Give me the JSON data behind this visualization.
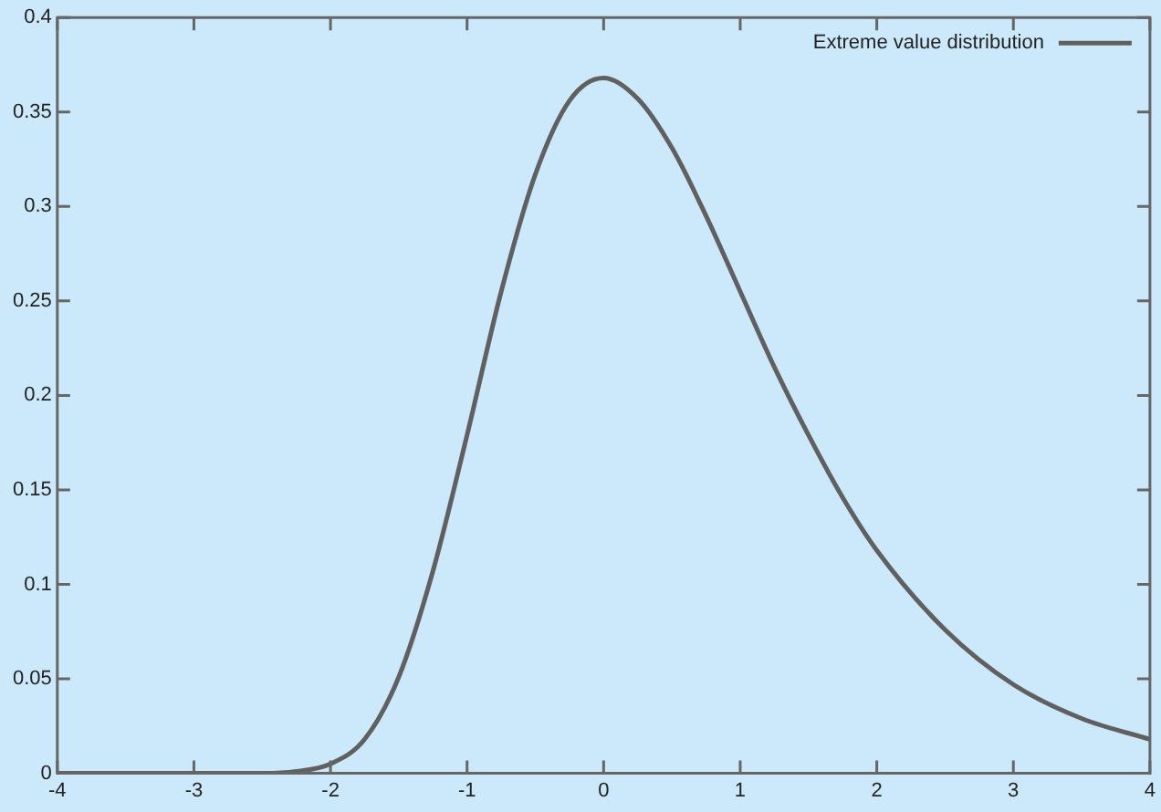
{
  "chart_data": {
    "type": "line",
    "legend": "top right",
    "grid": false,
    "marker": "none",
    "line_style": "solid",
    "x": [
      -4,
      -3,
      -2.5,
      -2.25,
      -2,
      -1.75,
      -1.5,
      -1.25,
      -1,
      -0.75,
      -0.5,
      -0.25,
      0,
      0.25,
      0.5,
      0.75,
      1,
      1.25,
      1.5,
      1.75,
      2,
      2.5,
      3,
      3.5,
      4
    ],
    "series": [
      {
        "name": "Extreme value distribution",
        "color": "#606060",
        "values": [
          0,
          0,
          0,
          0.001,
          0.005,
          0.018,
          0.051,
          0.107,
          0.179,
          0.255,
          0.317,
          0.356,
          0.368,
          0.357,
          0.331,
          0.295,
          0.255,
          0.215,
          0.179,
          0.146,
          0.118,
          0.076,
          0.047,
          0.029,
          0.018
        ]
      }
    ],
    "xlim": [
      -4,
      4
    ],
    "xticks": [
      -4,
      -3,
      -2,
      -1,
      0,
      1,
      2,
      3,
      4
    ],
    "ylim": [
      0,
      0.4
    ],
    "yticks": [
      0,
      0.05,
      0.1,
      0.15,
      0.2,
      0.25,
      0.3,
      0.35,
      0.4
    ]
  }
}
